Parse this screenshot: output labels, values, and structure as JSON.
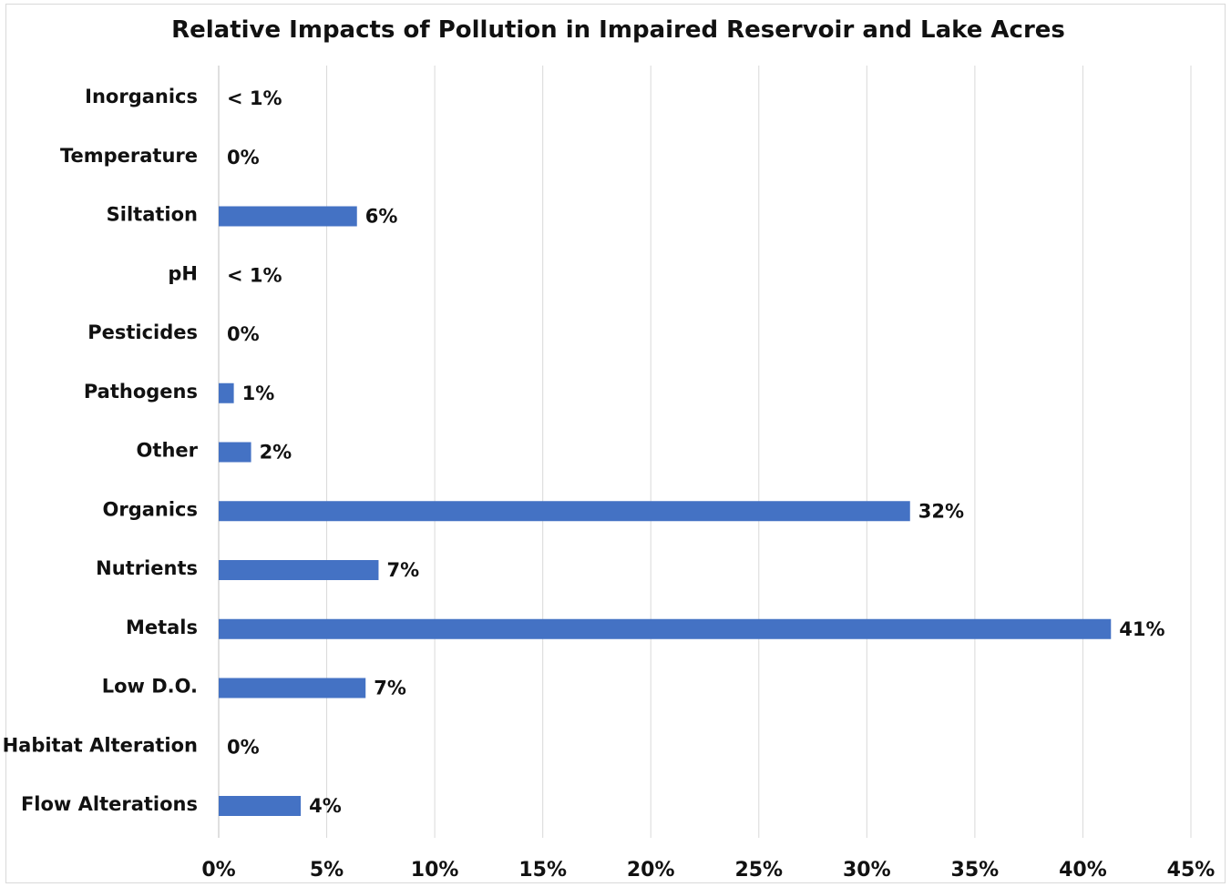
{
  "chart_data": {
    "type": "bar",
    "orientation": "horizontal",
    "title": "Relative Impacts of Pollution in Impaired Reservoir and Lake Acres",
    "xlabel": "",
    "ylabel": "",
    "categories": [
      "Inorganics",
      "Temperature",
      "Siltation",
      "pH",
      "Pesticides",
      "Pathogens",
      "Other",
      "Organics",
      "Nutrients",
      "Metals",
      "Low D.O.",
      "Habitat Alteration",
      "Flow Alterations"
    ],
    "values": [
      0.3,
      0,
      6.4,
      0.3,
      0,
      0.7,
      1.5,
      32,
      7.4,
      41.3,
      6.8,
      0,
      3.8
    ],
    "data_labels": [
      "< 1%",
      "0%",
      "6%",
      "< 1%",
      "0%",
      "1%",
      "2%",
      "32%",
      "7%",
      "41%",
      "7%",
      "0%",
      "4%"
    ],
    "xlim": [
      0,
      45
    ],
    "x_ticks": [
      0,
      5,
      10,
      15,
      20,
      25,
      30,
      35,
      40,
      45
    ],
    "x_tick_labels": [
      "0%",
      "5%",
      "10%",
      "15%",
      "20%",
      "25%",
      "30%",
      "35%",
      "40%",
      "45%"
    ],
    "grid": "vertical",
    "legend": "none",
    "bar_color": "#4472c4",
    "grid_color": "#d9d9d9"
  }
}
